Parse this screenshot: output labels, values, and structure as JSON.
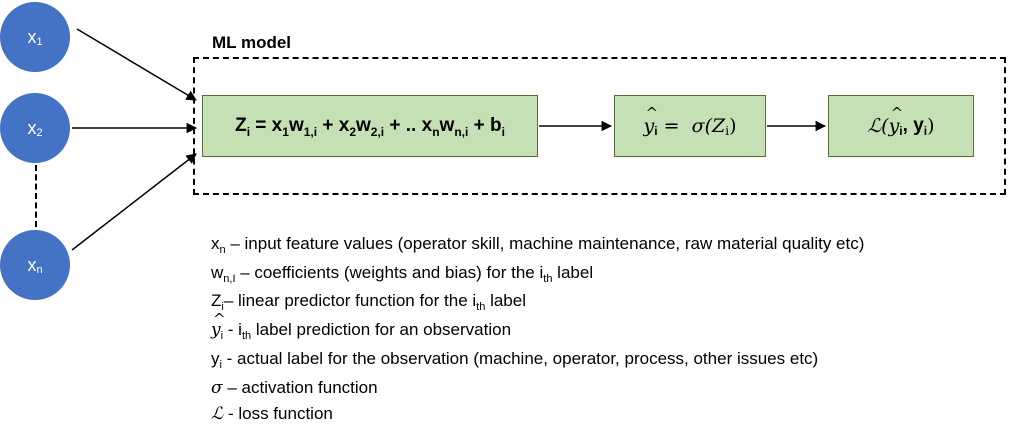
{
  "nodes": {
    "n1": {
      "base": "x",
      "sub": "1"
    },
    "n2": {
      "base": "x",
      "sub": "2"
    },
    "n3": {
      "base": "x",
      "sub": "n"
    }
  },
  "ml_model_title": "ML model",
  "blocks": {
    "linear": {
      "text": "Z_i = x_1w_{1,i} + x_2w_{2,i} + .. x_nw_{n,i} + b_i"
    },
    "activation": {
      "y": "y",
      "i": "i",
      "eq": "=",
      "sigma": "σ(Z",
      "sub": "i",
      "close": ")"
    },
    "loss": {
      "L": "ℒ(",
      "y": "y",
      "i": "i",
      "sep": " , y",
      "i2": "i",
      "close": ")"
    }
  },
  "legend": [
    {
      "sym": "x",
      "sub": "n",
      "text": " – input feature values (operator skill, machine maintenance, raw material quality etc)"
    },
    {
      "sym": "w",
      "sub": "n,I",
      "text": " – coefficients (weights and bias) for the i",
      "sub2": "th",
      "text2": " label"
    },
    {
      "sym": "Z",
      "sub": "i",
      "text": "– linear predictor function for the i",
      "sub2": "th",
      "text2": " label"
    },
    {
      "sym": "y",
      "sub": "i",
      "text": " - i",
      "sub2": "th",
      "text2": " label prediction for an observation"
    },
    {
      "sym": "y",
      "sub": "i",
      "text": " - actual label for the observation (machine, operator, process, other issues etc)"
    },
    {
      "sym": "σ",
      "text": " – activation function"
    },
    {
      "sym": "ℒ",
      "text": " - loss function"
    }
  ]
}
